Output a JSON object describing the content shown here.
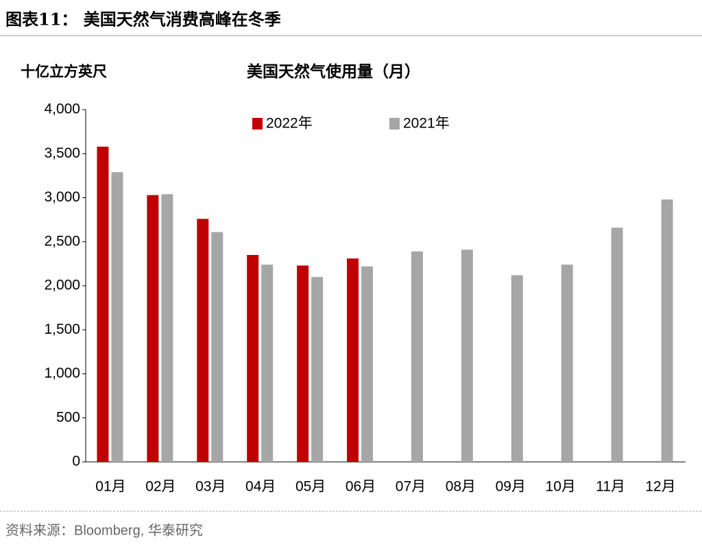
{
  "header": {
    "title": "图表11：  美国天然气消费高峰在冬季"
  },
  "chart_data": {
    "type": "bar",
    "title": "美国天然气使用量（月）",
    "y_label": "十亿立方英尺",
    "categories": [
      "01月",
      "02月",
      "03月",
      "04月",
      "05月",
      "06月",
      "07月",
      "08月",
      "09月",
      "10月",
      "11月",
      "12月"
    ],
    "series": [
      {
        "name": "2022年",
        "color": "#c00000",
        "values": [
          3580,
          3030,
          2760,
          2350,
          2230,
          2310,
          null,
          null,
          null,
          null,
          null,
          null
        ]
      },
      {
        "name": "2021年",
        "color": "#a6a6a6",
        "values": [
          3290,
          3040,
          2610,
          2240,
          2100,
          2220,
          2390,
          2410,
          2120,
          2240,
          2660,
          2980
        ]
      }
    ],
    "ylim": [
      0,
      4000
    ],
    "yticks": [
      0,
      500,
      {
        "value": 1000,
        "label": "1,000"
      },
      {
        "value": 1500,
        "label": "1,500"
      },
      {
        "value": 2000,
        "label": "2,000"
      },
      {
        "value": 2500,
        "label": "2,500"
      },
      {
        "value": 3000,
        "label": "3,000"
      },
      {
        "value": 3500,
        "label": "3,500"
      },
      {
        "value": 4000,
        "label": "4,000"
      }
    ],
    "grid": false,
    "legend_position": "top"
  },
  "footer": {
    "source": "资料来源：Bloomberg, 华泰研究"
  }
}
